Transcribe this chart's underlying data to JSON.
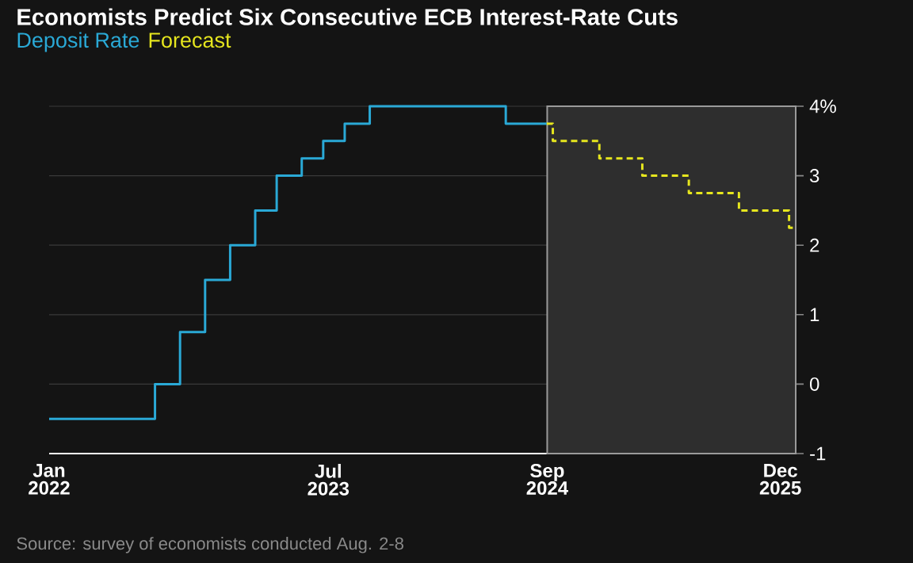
{
  "chart_data": {
    "type": "step",
    "title": "Economists Predict Six Consecutive ECB Interest-Rate Cuts",
    "annotations": [
      "Source: survey of economists conducted Aug. 2-8"
    ],
    "series": [
      {
        "name": "Deposit Rate",
        "color": "#2aa9d6",
        "line_style": "solid",
        "x": [
          "2022-01-01",
          "2022-07-27",
          "2022-09-14",
          "2022-11-02",
          "2022-12-21",
          "2023-02-08",
          "2023-03-22",
          "2023-05-10",
          "2023-06-21",
          "2023-08-02",
          "2023-09-20",
          "2024-06-12",
          "2024-08-31"
        ],
        "values": [
          -0.5,
          0,
          0.75,
          1.5,
          2.0,
          2.5,
          3.0,
          3.25,
          3.5,
          3.75,
          4.0,
          3.75,
          3.75
        ]
      },
      {
        "name": "Forecast",
        "color": "#e6e61e",
        "line_style": "dashed",
        "x": [
          "2024-08-31",
          "2024-09-12",
          "2024-12-12",
          "2025-03-06",
          "2025-06-05",
          "2025-09-11",
          "2025-12-18",
          "2025-12-31"
        ],
        "values": [
          3.75,
          3.5,
          3.25,
          3.0,
          2.75,
          2.5,
          2.25,
          2.25
        ]
      }
    ],
    "xlim": [
      "2022-01-01",
      "2025-12-31"
    ],
    "xticks": [
      {
        "value": "2022-01-01",
        "label": "Jan 2022"
      },
      {
        "value": "2023-07-01",
        "label": "Jul 2023"
      },
      {
        "value": "2024-09-01",
        "label": "Sep 2024"
      },
      {
        "value": "2025-12-01",
        "label": "Dec 2025"
      }
    ],
    "ylim": [
      -1,
      4
    ],
    "yticks": [
      {
        "value": 4,
        "label": "4%"
      },
      3,
      2,
      1,
      0,
      -1
    ],
    "grid": "y",
    "legend": "top left",
    "bands": [
      {
        "axis": "x",
        "from": "2024-09-01",
        "to": "2025-12-31",
        "color": "#2e2e2e"
      }
    ]
  }
}
